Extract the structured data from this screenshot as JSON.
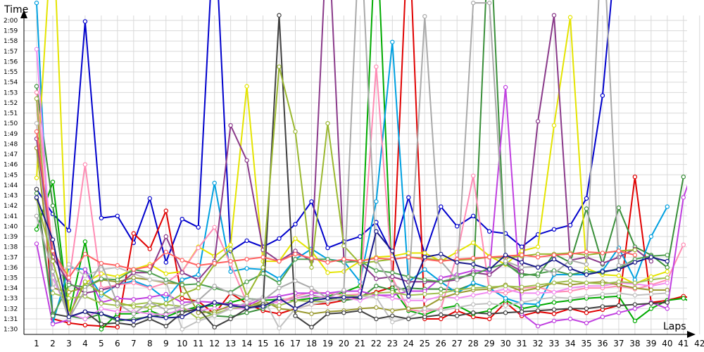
{
  "chart_data": {
    "type": "line",
    "ylabel": "Time",
    "xlabel": "Laps",
    "x": [
      1,
      2,
      3,
      4,
      5,
      6,
      7,
      8,
      9,
      10,
      11,
      12,
      13,
      14,
      15,
      16,
      17,
      18,
      19,
      20,
      21,
      22,
      23,
      24,
      25,
      26,
      27,
      28,
      29,
      30,
      31,
      32,
      33,
      34,
      35,
      36,
      37,
      38,
      39,
      40,
      41,
      42
    ],
    "y_ticks": [
      "1:30",
      "1:31",
      "1:32",
      "1:33",
      "1:34",
      "1:35",
      "1:36",
      "1:37",
      "1:38",
      "1:39",
      "1:40",
      "1:41",
      "1:42",
      "1:43",
      "1:44",
      "1:45",
      "1:46",
      "1:47",
      "1:48",
      "1:49",
      "1:50",
      "1:51",
      "1:52",
      "1:53",
      "1:54",
      "1:55",
      "1:56",
      "1:57",
      "1:58",
      "1:59",
      "2:00"
    ],
    "ylim": [
      89.3,
      121.8
    ],
    "grid": true,
    "legend": "none",
    "series": [
      {
        "color": "#0000cc",
        "values": [
          103.6,
          101.2,
          99.6,
          119.9,
          100.8,
          101.0,
          98.4,
          102.7,
          96.5,
          100.7,
          99.9,
          130,
          97.6,
          98.6,
          98.0,
          98.8,
          100.2,
          102.4,
          97.9,
          98.5,
          99.0,
          100.4,
          97.3,
          102.8,
          97.3,
          101.9,
          100.0,
          101.0,
          99.5,
          99.3,
          98.0,
          99.2,
          99.7,
          100.1,
          102.7,
          112.7,
          130,
          null,
          null,
          null,
          null,
          null
        ]
      },
      {
        "color": "#e00000",
        "values": [
          112.4,
          91.0,
          90.6,
          90.4,
          90.3,
          90.2,
          99.3,
          97.8,
          101.5,
          93.0,
          92.7,
          91.5,
          93.5,
          92.5,
          91.8,
          91.5,
          92.0,
          92.4,
          92.5,
          92.8,
          93.2,
          93.6,
          94.1,
          130,
          91.0,
          91.0,
          91.8,
          91.2,
          91.0,
          92.6,
          91.3,
          91.7,
          91.5,
          92.0,
          91.6,
          91.9,
          92.3,
          104.8,
          92.6,
          92.8,
          93.2,
          92.8
        ]
      },
      {
        "color": "#00aa00",
        "values": [
          99.7,
          104.3,
          91.4,
          98.5,
          90.0,
          91.5,
          91.5,
          91.8,
          91.2,
          91.8,
          92.2,
          92.3,
          92.6,
          93.0,
          92.8,
          92.9,
          92.8,
          93.0,
          93.2,
          93.6,
          94.2,
          130,
          94.0,
          91.8,
          91.4,
          92.0,
          92.3,
          91.5,
          91.8,
          92.8,
          92.0,
          92.3,
          92.6,
          92.8,
          93.0,
          93.1,
          93.2,
          90.8,
          92.0,
          92.8,
          93.0,
          92.2
        ]
      },
      {
        "color": "#3a8f3a",
        "values": [
          113.6,
          102.0,
          91.3,
          91.0,
          91.5,
          90.8,
          91.0,
          91.2,
          91.5,
          91.8,
          92.0,
          91.3,
          91.2,
          91.6,
          92.0,
          92.8,
          93.0,
          93.3,
          93.0,
          92.8,
          93.0,
          94.2,
          93.8,
          94.0,
          93.9,
          93.9,
          93.8,
          94.4,
          130,
          96.3,
          95.4,
          95.2,
          97.3,
          96.5,
          101.7,
          96.3,
          101.8,
          98.0,
          97.2,
          96.0,
          104.8,
          null
        ]
      },
      {
        "color": "#00a0e0",
        "values": [
          121.7,
          90.6,
          96.0,
          95.8,
          93.3,
          94.3,
          94.7,
          94.1,
          92.9,
          94.8,
          95.3,
          104.2,
          95.6,
          95.9,
          95.8,
          94.9,
          96.8,
          97.8,
          96.8,
          96.6,
          94.6,
          102.4,
          117.9,
          94.6,
          95.8,
          94.6,
          93.5,
          94.5,
          94.0,
          93.0,
          92.5,
          92.4,
          95.3,
          95.3,
          95.3,
          95.7,
          97.9,
          94.8,
          99.0,
          101.9,
          null,
          null
        ]
      },
      {
        "color": "#e4e400",
        "values": [
          104.7,
          130,
          91.4,
          94.5,
          95.4,
          95.1,
          95.8,
          96.3,
          95.4,
          95.6,
          98.0,
          97.1,
          98.2,
          113.6,
          96.6,
          96.6,
          98.8,
          97.6,
          95.5,
          95.6,
          96.6,
          97.0,
          97.1,
          97.4,
          97.4,
          96.6,
          97.5,
          98.4,
          97.1,
          96.3,
          97.6,
          98.0,
          109.8,
          120.3,
          95.9,
          95.3,
          95.2,
          94.4,
          95.1,
          95.6,
          null,
          null
        ]
      },
      {
        "color": "#ff8cb4",
        "values": [
          113.0,
          97.4,
          94.6,
          106.0,
          94.0,
          94.3,
          94.5,
          94.0,
          94.5,
          95.6,
          97.9,
          99.9,
          96.3,
          92.6,
          92.4,
          92.7,
          93.2,
          93.6,
          93.5,
          93.3,
          93.4,
          115.5,
          95.0,
          91.9,
          91.7,
          92.0,
          97.2,
          104.9,
          93.7,
          93.5,
          94.0,
          94.1,
          93.6,
          93.7,
          94.0,
          94.0,
          94.2,
          93.9,
          94.3,
          94.8,
          98.2,
          null
        ]
      },
      {
        "color": "#f08cf0",
        "values": [
          117.2,
          95.0,
          91.5,
          91.0,
          92.0,
          91.7,
          91.7,
          91.5,
          91.4,
          92.0,
          91.8,
          92.0,
          92.0,
          92.0,
          92.5,
          92.6,
          93.0,
          93.2,
          93.1,
          93.1,
          92.8,
          93.4,
          93.0,
          92.8,
          92.8,
          93.2,
          93.0,
          93.3,
          93.6,
          93.9,
          93.5,
          93.5,
          93.6,
          94.0,
          94.2,
          94.2,
          94.5,
          94.4,
          94.2,
          94.5,
          null,
          null
        ]
      },
      {
        "color": "#c040e0",
        "values": [
          98.3,
          90.5,
          90.9,
          95.8,
          92.6,
          93.0,
          92.9,
          93.1,
          93.4,
          92.6,
          92.7,
          92.6,
          92.4,
          92.3,
          93.0,
          93.2,
          93.5,
          93.5,
          93.5,
          93.7,
          93.7,
          93.3,
          93.3,
          93.7,
          93.7,
          95.0,
          95.3,
          95.7,
          95.6,
          113.5,
          91.5,
          90.3,
          90.8,
          91.0,
          90.6,
          91.2,
          91.6,
          92.0,
          92.6,
          92.0,
          102.8,
          107.3
        ]
      },
      {
        "color": "#9a9a30",
        "values": [
          107.6,
          94.0,
          93.6,
          94.1,
          94.8,
          94.6,
          95.0,
          94.8,
          94.5,
          94.4,
          91.6,
          91.7,
          92.3,
          92.1,
          92.8,
          92.0,
          91.8,
          91.5,
          91.7,
          91.8,
          92.0,
          92.1,
          91.8,
          92.0,
          92.1,
          93.0,
          93.5,
          93.8,
          93.9,
          94.3,
          93.7,
          94.0,
          94.5,
          94.3,
          94.5,
          94.6,
          94.3,
          94.0,
          93.8,
          93.8,
          null,
          null
        ]
      },
      {
        "color": "#a0c050",
        "values": [
          112.4,
          93.5,
          93.0,
          93.2,
          92.5,
          92.3,
          92.4,
          92.6,
          92.4,
          92.2,
          91.0,
          91.5,
          92.0,
          92.2,
          92.5,
          92.3,
          92.8,
          92.7,
          92.7,
          93.3,
          93.2,
          93.5,
          93.6,
          93.3,
          93.4,
          93.5,
          93.8,
          94.0,
          94.1,
          94.2,
          94.1,
          94.3,
          94.5,
          94.7,
          94.5,
          94.4,
          94.6,
          94.5,
          94.8,
          95.0,
          null,
          null
        ]
      },
      {
        "color": "#c0c0c0",
        "values": [
          110.0,
          94.0,
          96.3,
          95.2,
          95.8,
          96.0,
          95.4,
          94.8,
          94.6,
          90.0,
          90.8,
          91.3,
          92.0,
          92.6,
          93.1,
          90.1,
          92.0,
          92.4,
          92.7,
          93.0,
          93.2,
          93.1,
          90.7,
          91.1,
          92.0,
          91.8,
          92.1,
          92.4,
          92.5,
          92.3,
          92.6,
          92.9,
          93.1,
          93.0,
          93.2,
          93.4,
          93.5,
          93.3,
          93.4,
          93.5,
          null,
          null
        ]
      },
      {
        "color": "#404040",
        "values": [
          103.6,
          91.5,
          91.2,
          91.7,
          90.5,
          90.6,
          90.4,
          91.0,
          90.3,
          91.6,
          92.0,
          90.2,
          91.0,
          92.0,
          92.4,
          120.5,
          91.3,
          90.2,
          91.5,
          91.6,
          91.8,
          91.0,
          91.3,
          91.0,
          91.2,
          91.4,
          91.3,
          91.6,
          91.5,
          91.6,
          91.7,
          91.8,
          91.9,
          92.0,
          92.0,
          92.2,
          92.3,
          92.4,
          92.5,
          92.6,
          null,
          null
        ]
      },
      {
        "color": "#8a3a8a",
        "values": [
          108.5,
          97.0,
          94.5,
          93.5,
          93.8,
          94.2,
          95.5,
          95.5,
          99.0,
          95.5,
          94.8,
          96.6,
          109.8,
          106.4,
          97.7,
          96.6,
          97.6,
          96.6,
          130,
          96.8,
          96.5,
          94.9,
          95.1,
          94.6,
          94.6,
          94.6,
          94.8,
          95.5,
          95.3,
          96.5,
          95.6,
          110.2,
          120.5,
          96.7,
          97.0,
          96.4,
          97.0,
          97.8,
          96.6,
          null,
          null,
          null
        ]
      },
      {
        "color": "#50a050",
        "values": [
          103.2,
          91.3,
          94.3,
          94.1,
          94.9,
          94.8,
          95.8,
          95.5,
          94.8,
          94.3,
          94.4,
          94.0,
          93.6,
          94.6,
          95.4,
          94.5,
          96.8,
          96.8,
          96.8,
          96.5,
          96.6,
          95.7,
          95.5,
          95.1,
          94.8,
          94.6,
          95.0,
          95.3,
          95.9,
          96.4,
          95.2,
          95.4,
          95.7,
          95.3,
          95.6,
          95.5,
          95.9,
          96.8,
          97.1,
          97.2,
          null,
          null
        ]
      },
      {
        "color": "#9ab830",
        "values": [
          102.7,
          96.6,
          91.3,
          94.6,
          93.5,
          92.6,
          92.2,
          92.1,
          92.5,
          93.4,
          94.0,
          96.3,
          97.8,
          93.2,
          96.0,
          115.5,
          109.2,
          96.0,
          110.0,
          98.1,
          96.4,
          96.6,
          96.8,
          97.0,
          96.9,
          96.7,
          96.7,
          96.8,
          97.0,
          96.9,
          97.1,
          97.3,
          97.3,
          97.4,
          97.2,
          97.4,
          97.6,
          97.7,
          null,
          null,
          null,
          null
        ]
      },
      {
        "color": "#aaaaaa",
        "values": [
          101.0,
          95.6,
          91.0,
          93.8,
          96.4,
          92.5,
          91.5,
          92.6,
          91.9,
          92.2,
          92.8,
          94.2,
          93.5,
          93.0,
          92.8,
          94.0,
          94.7,
          94.0,
          93.0,
          93.8,
          130,
          96.7,
          94.4,
          93.5,
          120.4,
          96.6,
          94.8,
          121.7,
          121.7,
          96.6,
          96.0,
          96.1,
          95.4,
          96.7,
          96.3,
          130,
          96.2,
          96.5,
          null,
          null,
          null,
          null
        ]
      },
      {
        "color": "#ff6060",
        "values": [
          109.2,
          97.6,
          95.0,
          97.3,
          96.4,
          96.2,
          95.8,
          96.1,
          97.5,
          96.7,
          96.2,
          96.4,
          96.6,
          96.8,
          97.0,
          96.6,
          97.3,
          96.9,
          96.5,
          96.8,
          96.6,
          96.9,
          96.8,
          97.0,
          96.8,
          96.6,
          96.8,
          96.9,
          97.0,
          97.1,
          97.2,
          97.0,
          97.2,
          97.3,
          97.5,
          97.4,
          97.6,
          97.2,
          null,
          null,
          null,
          null
        ]
      },
      {
        "color": "#1a1a8a",
        "values": [
          102.8,
          98.7,
          91.2,
          91.7,
          91.5,
          91.0,
          90.8,
          91.3,
          91.1,
          91.2,
          92.0,
          92.6,
          92.3,
          92.1,
          92.2,
          93.0,
          92.0,
          92.8,
          93.0,
          93.1,
          93.1,
          99.5,
          97.6,
          93.2,
          97.0,
          97.3,
          96.5,
          96.3,
          95.8,
          97.2,
          96.5,
          96.0,
          96.8,
          95.9,
          95.3,
          95.6,
          95.8,
          96.5,
          97.0,
          96.6,
          null,
          null
        ]
      }
    ]
  }
}
